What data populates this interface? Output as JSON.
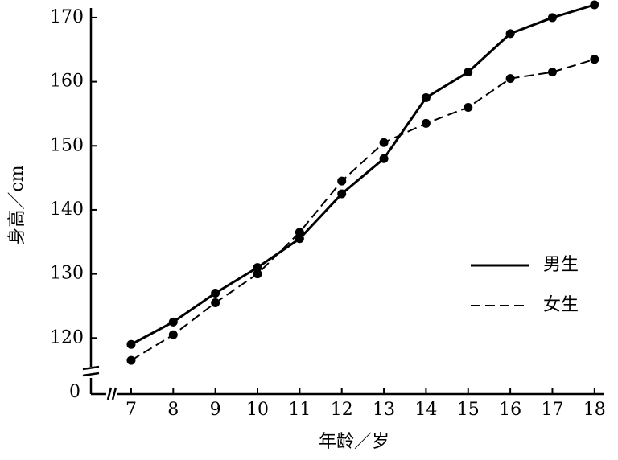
{
  "chart_data": {
    "type": "line",
    "x_label": "年龄／岁",
    "y_label": "身高／cm",
    "x": [
      7,
      8,
      9,
      10,
      11,
      12,
      13,
      14,
      15,
      16,
      17,
      18
    ],
    "series": [
      {
        "name": "男生",
        "color": "#000000",
        "dash": "solid",
        "values": [
          119,
          122.5,
          127,
          131,
          135.5,
          142.5,
          148,
          157.5,
          161.5,
          167.5,
          170,
          172
        ]
      },
      {
        "name": "女生",
        "color": "#000000",
        "dash": "dashed",
        "values": [
          116.5,
          120.5,
          125.5,
          130,
          136.5,
          144.5,
          150.5,
          153.5,
          156,
          160.5,
          161.5,
          163.5
        ]
      }
    ],
    "xlim": [
      6,
      18.5
    ],
    "ylim": [
      111.5,
      172
    ],
    "xticks": [
      7,
      8,
      9,
      10,
      11,
      12,
      13,
      14,
      15,
      16,
      17,
      18
    ],
    "yticks": [
      120,
      130,
      140,
      150,
      160,
      170
    ],
    "y_break_label": 0,
    "legend": "right"
  }
}
